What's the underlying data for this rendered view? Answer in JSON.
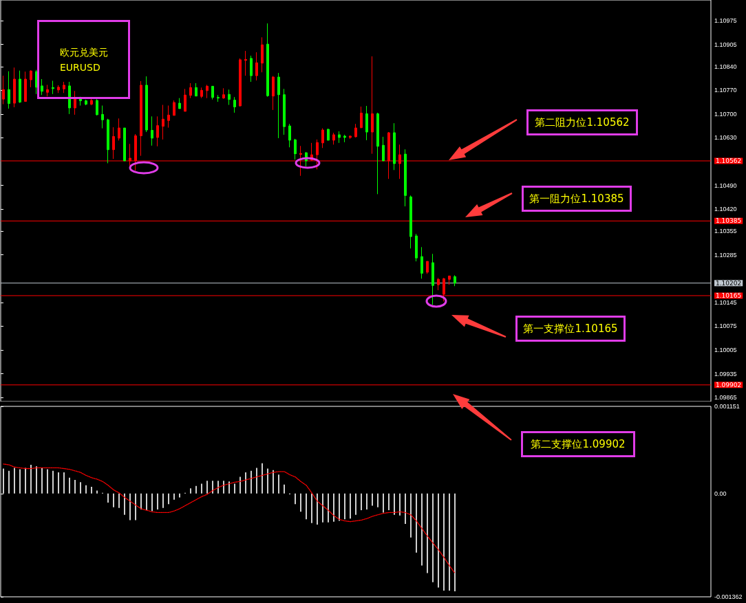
{
  "chart_data": [
    {
      "type": "candlestick",
      "title": "欧元兑美元",
      "subtitle": "EURUSD",
      "categories": [
        null,
        null,
        null,
        null,
        null,
        null,
        null,
        null,
        null,
        null,
        null,
        null,
        null,
        null,
        null,
        null,
        null,
        null,
        null,
        null,
        null,
        null,
        null,
        null,
        null,
        null,
        null,
        null,
        null,
        null,
        null,
        null,
        null,
        null,
        null,
        null,
        null,
        null,
        null,
        null,
        null,
        null,
        null,
        null,
        null,
        null,
        null,
        null,
        null,
        null,
        null,
        null,
        null,
        null,
        null,
        null,
        null,
        null,
        null,
        null,
        null,
        null,
        null,
        null,
        null,
        null,
        null,
        null,
        null,
        null,
        null,
        null,
        null,
        null,
        null,
        null,
        null,
        null,
        null,
        null,
        null,
        null,
        null,
        null,
        null,
        null,
        null,
        null,
        null,
        null,
        null,
        null,
        null,
        null,
        null,
        null,
        null,
        null,
        null,
        null,
        null,
        null,
        null,
        null,
        null,
        null,
        null,
        null,
        null,
        null,
        null,
        null,
        null,
        null,
        null,
        null,
        null,
        null,
        null,
        null,
        null,
        null,
        null,
        null,
        null,
        null,
        null,
        null,
        null
      ],
      "ohlc": [
        [
          1.10744,
          1.10813,
          1.10729,
          1.10772
        ],
        [
          1.10772,
          1.10826,
          1.10716,
          1.10731
        ],
        [
          1.10732,
          1.10837,
          1.1072,
          1.10803
        ],
        [
          1.10803,
          1.10828,
          1.10733,
          1.10735
        ],
        [
          1.10737,
          1.10825,
          1.10737,
          1.10803
        ],
        [
          1.10801,
          1.10829,
          1.10779,
          1.10827
        ],
        [
          1.10825,
          1.1083,
          1.10759,
          1.10779
        ],
        [
          1.10783,
          1.10803,
          1.10756,
          1.10767
        ],
        [
          1.10764,
          1.10786,
          1.10752,
          1.10772
        ],
        [
          1.10778,
          1.10798,
          1.10759,
          1.10775
        ],
        [
          1.10771,
          1.10785,
          1.10762,
          1.10779
        ],
        [
          1.10774,
          1.10795,
          1.10762,
          1.10785
        ],
        [
          1.10783,
          1.10795,
          1.107,
          1.10718
        ],
        [
          1.10718,
          1.10768,
          1.10698,
          1.10747
        ],
        [
          1.10747,
          1.10751,
          1.10725,
          1.10739
        ],
        [
          1.10739,
          1.10742,
          1.10726,
          1.10729
        ],
        [
          1.10729,
          1.10749,
          1.10726,
          1.1074
        ],
        [
          1.1074,
          1.10744,
          1.10696,
          1.10698
        ],
        [
          1.10699,
          1.10725,
          1.10658,
          1.10683
        ],
        [
          1.10683,
          1.10686,
          1.10555,
          1.10595
        ],
        [
          1.10595,
          1.10661,
          1.10568,
          1.10634
        ],
        [
          1.10629,
          1.10687,
          1.10622,
          1.10659
        ],
        [
          1.10659,
          1.10659,
          1.10562,
          1.10562
        ],
        [
          1.10562,
          1.10612,
          1.10548,
          1.1057
        ],
        [
          1.10562,
          1.10641,
          1.10533,
          1.10636
        ],
        [
          1.10636,
          1.10797,
          1.10577,
          1.10785
        ],
        [
          1.10785,
          1.10811,
          1.10647,
          1.10653
        ],
        [
          1.10652,
          1.10693,
          1.10607,
          1.10629
        ],
        [
          1.10631,
          1.10693,
          1.10605,
          1.10666
        ],
        [
          1.10664,
          1.10727,
          1.10625,
          1.10685
        ],
        [
          1.10681,
          1.10725,
          1.1066,
          1.10697
        ],
        [
          1.10696,
          1.1074,
          1.10696,
          1.10734
        ],
        [
          1.10732,
          1.10747,
          1.10716,
          1.10716
        ],
        [
          1.10708,
          1.10774,
          1.10708,
          1.10756
        ],
        [
          1.10755,
          1.10791,
          1.10747,
          1.10778
        ],
        [
          1.10778,
          1.10791,
          1.10753,
          1.10753
        ],
        [
          1.10752,
          1.10778,
          1.10747,
          1.1077
        ],
        [
          1.10769,
          1.10786,
          1.10747,
          1.10782
        ],
        [
          1.10782,
          1.10782,
          1.10743,
          1.10749
        ],
        [
          1.10749,
          1.10756,
          1.10736,
          1.10747
        ],
        [
          1.10747,
          1.10776,
          1.10745,
          1.10757
        ],
        [
          1.10758,
          1.10772,
          1.10727,
          1.10743
        ],
        [
          1.10741,
          1.1075,
          1.10704,
          1.10721
        ],
        [
          1.10724,
          1.10864,
          1.10722,
          1.1086
        ],
        [
          1.10858,
          1.10886,
          1.10813,
          1.10861
        ],
        [
          1.10864,
          1.10872,
          1.10795,
          1.10813
        ],
        [
          1.10813,
          1.10882,
          1.10799,
          1.10851
        ],
        [
          1.1085,
          1.10926,
          1.10823,
          1.10904
        ],
        [
          1.10906,
          1.10967,
          1.10751,
          1.10754
        ],
        [
          1.10753,
          1.10812,
          1.10712,
          1.10809
        ],
        [
          1.10809,
          1.10821,
          1.10629,
          1.10757
        ],
        [
          1.10757,
          1.10774,
          1.10639,
          1.10663
        ],
        [
          1.10665,
          1.10671,
          1.10602,
          1.10623
        ],
        [
          1.10624,
          1.10627,
          1.10566,
          1.10583
        ],
        [
          1.10581,
          1.10606,
          1.10518,
          1.10584
        ],
        [
          1.10586,
          1.10588,
          1.10546,
          1.10562
        ],
        [
          1.10564,
          1.10615,
          1.10563,
          1.1058
        ],
        [
          1.1058,
          1.10625,
          1.10537,
          1.10616
        ],
        [
          1.10615,
          1.10658,
          1.106,
          1.10653
        ],
        [
          1.10655,
          1.10657,
          1.10622,
          1.10623
        ],
        [
          1.10623,
          1.10645,
          1.1061,
          1.10639
        ],
        [
          1.10639,
          1.10649,
          1.10615,
          1.10631
        ],
        [
          1.10635,
          1.10639,
          1.10617,
          1.10631
        ],
        [
          1.10631,
          1.10637,
          1.10627,
          1.10635
        ],
        [
          1.10633,
          1.10671,
          1.10631,
          1.10659
        ],
        [
          1.1066,
          1.10722,
          1.10658,
          1.10703
        ],
        [
          1.10701,
          1.10724,
          1.10623,
          1.10647
        ],
        [
          1.10647,
          1.1087,
          1.10583,
          1.10701
        ],
        [
          1.10701,
          1.10704,
          1.10464,
          1.10605
        ],
        [
          1.10608,
          1.10633,
          1.10562,
          1.10562
        ],
        [
          1.10562,
          1.10647,
          1.10509,
          1.10645
        ],
        [
          1.10645,
          1.10673,
          1.10535,
          1.10554
        ],
        [
          1.10554,
          1.1061,
          1.10509,
          1.1058
        ],
        [
          1.10582,
          1.10596,
          1.10428,
          1.1046
        ],
        [
          1.10456,
          1.1046,
          1.10304,
          1.10339
        ],
        [
          1.10341,
          1.10347,
          1.10266,
          1.10276
        ],
        [
          1.1028,
          1.10308,
          1.10215,
          1.10231
        ],
        [
          1.10234,
          1.10266,
          1.10229,
          1.10266
        ],
        [
          1.10262,
          1.10288,
          1.10138,
          1.10195
        ],
        [
          1.10197,
          1.10217,
          1.10181,
          1.10213
        ],
        [
          1.10169,
          1.10217,
          1.10148,
          1.10215
        ],
        [
          1.10213,
          1.10223,
          1.10197,
          1.10223
        ],
        [
          1.10221,
          1.10225,
          1.10193,
          1.10202
        ],
        null,
        null,
        null,
        null,
        null,
        null,
        null,
        null,
        null,
        null,
        null,
        null,
        null,
        null,
        null,
        null,
        null,
        null,
        null,
        null,
        null,
        null,
        null,
        null,
        null,
        null,
        null,
        null,
        null,
        null,
        null,
        null,
        null,
        null,
        null,
        null,
        null,
        null,
        null,
        null,
        null,
        null,
        null,
        null,
        null,
        null
      ],
      "colors": [
        "#ff0000",
        "#00ff00",
        "#ff0000",
        "#00ff00",
        "#ff0000",
        "#ff0000",
        "#00ff00",
        "#00ff00",
        "#ff0000",
        "#00ff00",
        "#ff0000",
        "#ff0000",
        "#00ff00",
        "#ff0000",
        "#00ff00",
        "#00ff00",
        "#ff0000",
        "#00ff00",
        "#00ff00",
        "#00ff00",
        "#ff0000",
        "#ff0000",
        "#00ff00",
        "#ff0000",
        "#ff0000",
        "#ff0000",
        "#00ff00",
        "#00ff00",
        "#ff0000",
        "#ff0000",
        "#ff0000",
        "#ff0000",
        "#00ff00",
        "#ff0000",
        "#ff0000",
        "#00ff00",
        "#ff0000",
        "#ff0000",
        "#00ff00",
        "#00ff00",
        "#ff0000",
        "#00ff00",
        "#00ff00",
        "#ff0000",
        "#ff0000",
        "#00ff00",
        "#ff0000",
        "#ff0000",
        "#00ff00",
        "#ff0000",
        "#00ff00",
        "#00ff00",
        "#00ff00",
        "#00ff00",
        "#ff0000",
        "#00ff00",
        "#ff0000",
        "#ff0000",
        "#ff0000",
        "#00ff00",
        "#ff0000",
        "#00ff00",
        "#00ff00",
        "#ff0000",
        "#ff0000",
        "#ff0000",
        "#00ff00",
        "#ff0000",
        "#00ff00",
        "#00ff00",
        "#ff0000",
        "#00ff00",
        "#ff0000",
        "#00ff00",
        "#00ff00",
        "#00ff00",
        "#00ff00",
        "#ff0000",
        "#00ff00",
        "#ff0000",
        "#ff0000",
        "#ff0000",
        "#00ff00",
        null,
        null,
        null,
        null,
        null,
        null,
        null,
        null,
        null,
        null,
        null,
        null,
        null,
        null,
        null,
        null,
        null,
        null,
        null,
        null,
        null,
        null,
        null,
        null,
        null,
        null,
        null,
        null,
        null,
        null,
        null,
        null,
        null,
        null,
        null,
        null,
        null,
        null,
        null,
        null,
        null,
        null,
        null,
        null,
        null,
        null
      ],
      "ylim": [
        1.09853,
        1.11036
      ],
      "yticks": [
        1.09865,
        1.09935,
        1.10005,
        1.10075,
        1.10145,
        1.10285,
        1.10355,
        {
          "value": 1.1042,
          "label": "1.10420"
        },
        {
          "value": 1.1049,
          "label": "1.10490"
        },
        {
          "value": 1.1063,
          "label": "1.10630"
        },
        {
          "value": 1.107,
          "label": "1.10700"
        },
        {
          "value": 1.1077,
          "label": "1.10770"
        },
        {
          "value": 1.1084,
          "label": "1.10840"
        },
        1.10905,
        1.10975
      ],
      "tick_labels": "y",
      "ref_lines": [
        {
          "axis": "y",
          "value": 1.10562,
          "label": "1.10562",
          "color": "#ff0000"
        },
        {
          "axis": "y",
          "value": 1.10385,
          "label": "1.10385",
          "color": "#ff0000"
        },
        {
          "axis": "y",
          "value": 1.10202,
          "label": "1.10202",
          "color": "#c0c8d0"
        },
        {
          "axis": "y",
          "value": 1.10165,
          "label": "1.10165",
          "color": "#ff0000"
        },
        {
          "axis": "y",
          "value": 1.09902,
          "label": "1.09902",
          "color": "#ff0000"
        }
      ],
      "annotations": [
        "第二阻力位1.10562",
        "第一阻力位1.10385",
        "第一支撑位1.10165",
        "第二支撑位1.09902"
      ]
    },
    {
      "type": "bar",
      "categories": [
        null,
        null,
        null,
        null,
        null,
        null,
        null,
        null,
        null,
        null,
        null,
        null,
        null,
        null,
        null,
        null,
        null,
        null,
        null,
        null,
        null,
        null,
        null,
        null,
        null,
        null,
        null,
        null,
        null,
        null,
        null,
        null,
        null,
        null,
        null,
        null,
        null,
        null,
        null,
        null,
        null,
        null,
        null,
        null,
        null,
        null,
        null,
        null,
        null,
        null,
        null,
        null,
        null,
        null,
        null,
        null,
        null,
        null,
        null,
        null,
        null,
        null,
        null,
        null,
        null,
        null,
        null,
        null,
        null,
        null,
        null,
        null,
        null,
        null,
        null,
        null,
        null,
        null,
        null,
        null,
        null,
        null,
        null,
        null,
        null,
        null,
        null,
        null,
        null,
        null,
        null,
        null,
        null,
        null,
        null,
        null,
        null,
        null,
        null,
        null,
        null,
        null,
        null,
        null,
        null,
        null,
        null,
        null,
        null,
        null,
        null,
        null,
        null,
        null,
        null,
        null,
        null,
        null,
        null,
        null,
        null,
        null,
        null,
        null,
        null,
        null,
        null,
        null,
        null
      ],
      "series": [
        {
          "type": "bar",
          "color": "#d0d0d0",
          "values": [
            0.00033,
            0.0003,
            0.00034,
            0.00032,
            0.00034,
            0.00038,
            0.00036,
            0.00034,
            0.00032,
            0.0003,
            0.00028,
            0.00028,
            0.00021,
            0.00018,
            0.00015,
            0.00011,
            9e-05,
            4e-05,
            1e-05,
            -0.00012,
            -0.00018,
            -0.00019,
            -0.00028,
            -0.00035,
            -0.00035,
            -0.00021,
            -0.00022,
            -0.00023,
            -0.00021,
            -0.00019,
            -0.00014,
            -8e-05,
            -5e-05,
            1e-05,
            7e-05,
            0.0001,
            0.00013,
            0.00017,
            0.00017,
            0.00017,
            0.00017,
            0.00016,
            0.00013,
            0.00022,
            0.00028,
            0.0003,
            0.00034,
            0.0004,
            0.00033,
            0.00031,
            0.00025,
            0.00012,
            -1e-05,
            -0.00014,
            -0.00024,
            -0.00034,
            -0.00039,
            -0.00041,
            -0.00038,
            -0.00038,
            -0.00037,
            -0.00036,
            -0.00034,
            -0.00033,
            -0.00028,
            -0.00022,
            -0.00021,
            -0.00016,
            -0.00018,
            -0.00025,
            -0.00022,
            -0.00028,
            -0.00029,
            -0.0004,
            -0.00058,
            -0.00078,
            -0.00095,
            -0.00105,
            -0.00117,
            -0.00124,
            -0.00128,
            -0.00128,
            -0.00129,
            null,
            null,
            null,
            null,
            null,
            null,
            null,
            null,
            null,
            null,
            null,
            null,
            null,
            null,
            null,
            null,
            null,
            null,
            null,
            null,
            null,
            null,
            null,
            null,
            null,
            null,
            null,
            null,
            null,
            null,
            null,
            null,
            null,
            null,
            null,
            null,
            null,
            null,
            null,
            null,
            null,
            null,
            null,
            null,
            null,
            null
          ]
        },
        {
          "type": "line",
          "color": "#ff0000",
          "line_style": "dotted",
          "values": [
            0.00039,
            0.00038,
            0.00035,
            0.00034,
            0.00033,
            0.00033,
            0.00034,
            0.00034,
            0.00034,
            0.00034,
            0.00034,
            0.00033,
            0.00032,
            0.0003,
            0.00028,
            0.00024,
            0.00021,
            0.00019,
            0.00016,
            0.00011,
            5e-05,
            1e-05,
            -5e-05,
            -0.0001,
            -0.00015,
            -0.0002,
            -0.00022,
            -0.00024,
            -0.00025,
            -0.00025,
            -0.00025,
            -0.00023,
            -0.0002,
            -0.00016,
            -0.00012,
            -8e-05,
            -4e-05,
            -1e-05,
            4e-05,
            8e-05,
            0.00011,
            0.00013,
            0.00015,
            0.00016,
            0.00018,
            0.0002,
            0.00022,
            0.00024,
            0.00026,
            0.00028,
            0.00029,
            0.00029,
            0.00025,
            0.00022,
            0.00016,
            0.00011,
            1e-05,
            -0.0001,
            -0.00016,
            -0.00022,
            -0.00029,
            -0.00034,
            -0.00036,
            -0.00037,
            -0.00036,
            -0.00035,
            -0.00033,
            -0.0003,
            -0.00028,
            -0.00026,
            -0.00025,
            -0.00025,
            -0.00024,
            -0.00025,
            -0.00028,
            -0.00036,
            -0.00046,
            -0.00056,
            -0.00065,
            -0.00074,
            -0.00084,
            -0.00095,
            -0.00105,
            null,
            null,
            null,
            null,
            null,
            null,
            null,
            null,
            null,
            null,
            null,
            null,
            null,
            null,
            null,
            null,
            null,
            null,
            null,
            null,
            null,
            null,
            null,
            null,
            null,
            null,
            null,
            null,
            null,
            null,
            null,
            null,
            null,
            null,
            null,
            null,
            null,
            null,
            null,
            null,
            null,
            null,
            null,
            null,
            null,
            null
          ]
        }
      ],
      "marker": "none",
      "ylim": [
        -0.001362,
        0.001151
      ],
      "yticks": [
        -0.001362,
        {
          "value": 0,
          "label": "0.00"
        },
        0.001151
      ],
      "tick_labels": "y"
    }
  ]
}
